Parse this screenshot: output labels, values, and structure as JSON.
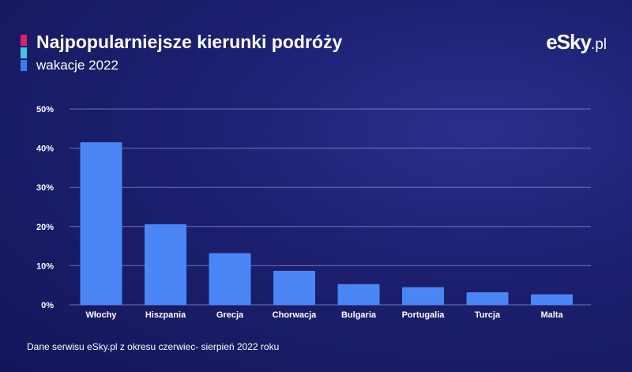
{
  "header": {
    "title": "Najpopularniejsze kierunki podróży",
    "subtitle": "wakacje 2022",
    "logo_main": "eSky",
    "logo_suffix": ".pl",
    "accent_colors": [
      "#e0206a",
      "#3fc7e0",
      "#3a7bf0"
    ]
  },
  "footnote": "Dane serwisu eSky.pl z okresu czerwiec- sierpień 2022 roku",
  "colors": {
    "bar": "#4a86f5",
    "grid": "#8a8fc8"
  },
  "chart_data": {
    "type": "bar",
    "title": "Najpopularniejsze kierunki podróży",
    "subtitle": "wakacje 2022",
    "xlabel": "",
    "ylabel": "",
    "categories": [
      "Włochy",
      "Hiszpania",
      "Grecja",
      "Chorwacja",
      "Bulgaria",
      "Portugalia",
      "Turcja",
      "Malta"
    ],
    "values": [
      41.5,
      20.6,
      13.2,
      8.7,
      5.3,
      4.5,
      3.2,
      2.7
    ],
    "ylim": [
      0,
      50
    ],
    "yticks": [
      "0%",
      "10%",
      "20%",
      "30%",
      "40%",
      "50%"
    ],
    "grid": true,
    "legend": "none"
  }
}
